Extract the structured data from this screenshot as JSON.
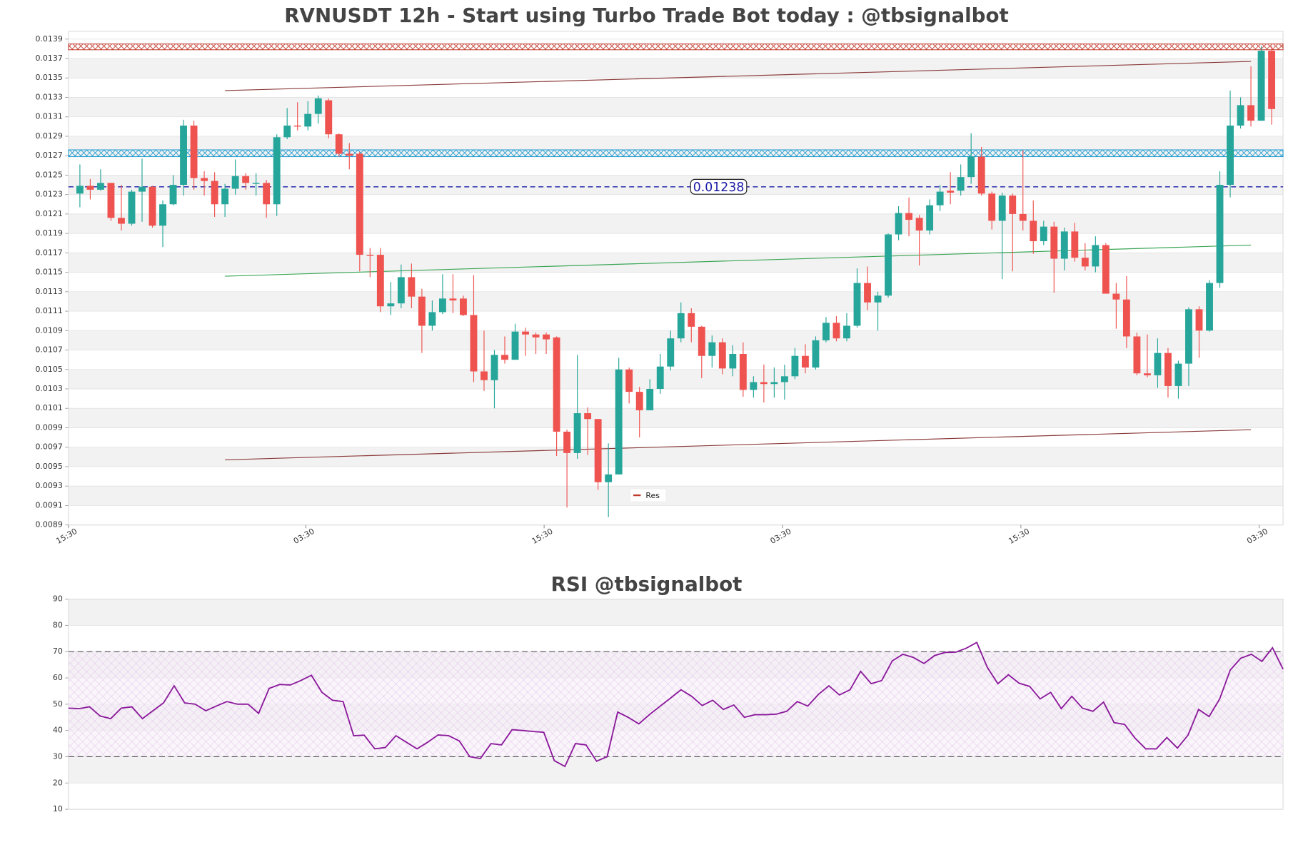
{
  "chart_data": [
    {
      "type": "candlestick",
      "title": "RVNUSDT 12h - Start using Turbo Trade Bot today : @tbsignalbot",
      "up_color": "#26a69a",
      "down_color": "#ef5350",
      "open": [
        0.01231,
        0.01239,
        0.01235,
        0.01242,
        0.01206,
        0.012,
        0.01233,
        0.01238,
        0.01198,
        0.0122,
        0.0124,
        0.01301,
        0.01247,
        0.01244,
        0.0122,
        0.01236,
        0.01249,
        0.01242,
        0.01242,
        0.0122,
        0.01289,
        0.01301,
        0.013,
        0.01313,
        0.01327,
        0.01292,
        0.01272,
        0.01272,
        0.01168,
        0.01168,
        0.01115,
        0.01118,
        0.01145,
        0.01125,
        0.01095,
        0.01109,
        0.01123,
        0.01123,
        0.01106,
        0.01048,
        0.01039,
        0.01065,
        0.0106,
        0.01089,
        0.01086,
        0.01086,
        0.01083,
        0.00986,
        0.00964,
        0.01005,
        0.00999,
        0.00934,
        0.00942,
        0.0105,
        0.01027,
        0.01008,
        0.0103,
        0.01053,
        0.01082,
        0.01108,
        0.01094,
        0.01064,
        0.01078,
        0.01051,
        0.01066,
        0.01029,
        0.01037,
        0.01035,
        0.01037,
        0.01043,
        0.01064,
        0.01052,
        0.0108,
        0.01098,
        0.01082,
        0.01095,
        0.01139,
        0.01119,
        0.01126,
        0.01189,
        0.01211,
        0.01206,
        0.01193,
        0.01219,
        0.01234,
        0.01234,
        0.01248,
        0.01269,
        0.01231,
        0.01203,
        0.01229,
        0.0121,
        0.01203,
        0.01182,
        0.01197,
        0.01164,
        0.01192,
        0.01165,
        0.01156,
        0.01178,
        0.01128,
        0.01122,
        0.01084,
        0.01046,
        0.01044,
        0.01067,
        0.01033,
        0.01056,
        0.01112,
        0.0109,
        0.01139,
        0.0124,
        0.01301,
        0.01322,
        0.01306,
        0.01378
      ],
      "high": [
        0.01261,
        0.01246,
        0.01256,
        0.01242,
        0.0124,
        0.01235,
        0.01267,
        0.01239,
        0.01224,
        0.0125,
        0.01307,
        0.01306,
        0.01254,
        0.01253,
        0.01241,
        0.01266,
        0.01252,
        0.01252,
        0.01245,
        0.01292,
        0.01319,
        0.01325,
        0.01326,
        0.01332,
        0.01329,
        0.01293,
        0.01283,
        0.01274,
        0.01175,
        0.01175,
        0.0114,
        0.01158,
        0.01159,
        0.01133,
        0.01121,
        0.01148,
        0.01148,
        0.01126,
        0.01147,
        0.0109,
        0.0107,
        0.01084,
        0.01097,
        0.01093,
        0.01088,
        0.01088,
        0.01084,
        0.00988,
        0.01065,
        0.01011,
        0.00999,
        0.00974,
        0.01062,
        0.01052,
        0.01032,
        0.0104,
        0.01066,
        0.0109,
        0.01119,
        0.01113,
        0.01095,
        0.01085,
        0.01082,
        0.01075,
        0.01078,
        0.01043,
        0.01055,
        0.01052,
        0.01055,
        0.01072,
        0.01076,
        0.01084,
        0.01104,
        0.01105,
        0.01108,
        0.01154,
        0.01156,
        0.0113,
        0.0119,
        0.01218,
        0.01227,
        0.01209,
        0.01225,
        0.0124,
        0.01253,
        0.01261,
        0.01293,
        0.01279,
        0.01233,
        0.01232,
        0.01231,
        0.01276,
        0.01224,
        0.01203,
        0.01202,
        0.01196,
        0.01201,
        0.0118,
        0.01187,
        0.0118,
        0.01139,
        0.01146,
        0.01088,
        0.01086,
        0.01082,
        0.01072,
        0.01059,
        0.01114,
        0.01115,
        0.01142,
        0.01254,
        0.01337,
        0.0133,
        0.01362,
        0.01383,
        0.01383
      ],
      "low": [
        0.01217,
        0.01225,
        0.01234,
        0.01203,
        0.01193,
        0.01198,
        0.01202,
        0.01196,
        0.01176,
        0.01219,
        0.01229,
        0.01235,
        0.01229,
        0.01207,
        0.01207,
        0.0123,
        0.01235,
        0.01229,
        0.01206,
        0.01208,
        0.01287,
        0.01296,
        0.01296,
        0.01303,
        0.01288,
        0.01269,
        0.01256,
        0.01151,
        0.01145,
        0.01109,
        0.01106,
        0.01113,
        0.01113,
        0.01067,
        0.0109,
        0.01107,
        0.01108,
        0.01105,
        0.01037,
        0.01028,
        0.0101,
        0.01056,
        0.0106,
        0.01064,
        0.01066,
        0.01066,
        0.00961,
        0.00908,
        0.00958,
        0.00962,
        0.00926,
        0.00898,
        0.00942,
        0.01015,
        0.0098,
        0.01008,
        0.01025,
        0.01049,
        0.01078,
        0.01078,
        0.01041,
        0.01052,
        0.01045,
        0.01043,
        0.01022,
        0.01021,
        0.01016,
        0.01021,
        0.01019,
        0.0104,
        0.01046,
        0.0105,
        0.01078,
        0.01079,
        0.01079,
        0.01093,
        0.01111,
        0.0109,
        0.01124,
        0.01183,
        0.01187,
        0.01157,
        0.01189,
        0.01213,
        0.0122,
        0.01229,
        0.01241,
        0.01229,
        0.01194,
        0.01143,
        0.01151,
        0.01193,
        0.01169,
        0.01178,
        0.01129,
        0.01152,
        0.01161,
        0.01152,
        0.0115,
        0.01128,
        0.01092,
        0.01072,
        0.01044,
        0.01042,
        0.01031,
        0.01021,
        0.0102,
        0.01033,
        0.01062,
        0.01089,
        0.01134,
        0.01227,
        0.01298,
        0.013,
        0.01306,
        0.01302
      ],
      "close": [
        0.01239,
        0.01235,
        0.01242,
        0.01206,
        0.012,
        0.01233,
        0.01238,
        0.01198,
        0.0122,
        0.0124,
        0.01301,
        0.01247,
        0.01244,
        0.0122,
        0.01236,
        0.01249,
        0.01242,
        0.01242,
        0.0122,
        0.01289,
        0.01301,
        0.013,
        0.01313,
        0.01329,
        0.01292,
        0.01272,
        0.0127,
        0.01168,
        0.01167,
        0.01115,
        0.01118,
        0.01145,
        0.01125,
        0.01095,
        0.01109,
        0.01123,
        0.01121,
        0.01106,
        0.01048,
        0.01039,
        0.01065,
        0.0106,
        0.01089,
        0.01086,
        0.01083,
        0.01081,
        0.00986,
        0.00964,
        0.01005,
        0.00999,
        0.00934,
        0.00942,
        0.0105,
        0.01027,
        0.01008,
        0.0103,
        0.01053,
        0.01082,
        0.01108,
        0.01094,
        0.01064,
        0.01078,
        0.01051,
        0.01066,
        0.01029,
        0.01037,
        0.01035,
        0.01037,
        0.01043,
        0.01064,
        0.01052,
        0.0108,
        0.01098,
        0.01082,
        0.01095,
        0.01139,
        0.01119,
        0.01126,
        0.01189,
        0.01211,
        0.01204,
        0.01193,
        0.01219,
        0.01233,
        0.01232,
        0.01248,
        0.01269,
        0.01231,
        0.01203,
        0.01229,
        0.0121,
        0.01203,
        0.01182,
        0.01197,
        0.01164,
        0.01192,
        0.01165,
        0.01156,
        0.01178,
        0.01128,
        0.01122,
        0.01084,
        0.01046,
        0.01044,
        0.01067,
        0.01033,
        0.01056,
        0.01112,
        0.0109,
        0.01139,
        0.0124,
        0.01301,
        0.01322,
        0.01306,
        0.01378,
        0.01318
      ],
      "xlim": [
        -1.1,
        116.1
      ],
      "xticks": [
        {
          "value": -1.1,
          "label": "15:30"
        },
        {
          "value": 21.8,
          "label": "03:30"
        },
        {
          "value": 44.8,
          "label": "15:30"
        },
        {
          "value": 67.8,
          "label": "03:30"
        },
        {
          "value": 90.8,
          "label": "15:30"
        },
        {
          "value": 113.8,
          "label": "03:30"
        }
      ],
      "ylim": [
        0.0089,
        0.01398
      ],
      "yticks": [
        0.0089,
        0.0091,
        0.0093,
        0.0095,
        0.0097,
        0.0099,
        0.0101,
        0.0103,
        0.0105,
        0.0107,
        0.0109,
        0.0111,
        0.0113,
        0.0115,
        0.0117,
        0.0119,
        0.0121,
        0.0123,
        0.0125,
        0.0127,
        0.0129,
        0.0131,
        0.0133,
        0.0135,
        0.0137,
        0.0139
      ],
      "zones": [
        {
          "name": "Res",
          "lo": 0.01379,
          "hi": 0.01385,
          "color": "#c0392b"
        },
        {
          "lo": 0.01269,
          "hi": 0.01276,
          "color": "#1f9bd1"
        }
      ],
      "price_line": {
        "value": 0.01238,
        "color": "#1a1aa6"
      },
      "lines": [
        {
          "x": [
            14.0,
            113.0
          ],
          "y": [
            0.01337,
            0.01367
          ],
          "color": "#8b3a3a"
        },
        {
          "x": [
            14.0,
            113.0
          ],
          "y": [
            0.01146,
            0.01178
          ],
          "color": "#3aa655"
        },
        {
          "x": [
            14.0,
            113.0
          ],
          "y": [
            0.00957,
            0.00988
          ],
          "color": "#8b3a3a"
        }
      ]
    },
    {
      "type": "line",
      "title": "RSI @tbsignalbot",
      "color": "#8b1a9b",
      "values": [
        48.5,
        48.3,
        49,
        45.5,
        44.5,
        48.5,
        49,
        44.5,
        47.5,
        50.5,
        57,
        50.5,
        50,
        47.5,
        49.3,
        51,
        50,
        50,
        46.5,
        56,
        57.5,
        57.3,
        59,
        61,
        54.5,
        51.5,
        51,
        38,
        38.2,
        33,
        33.5,
        38,
        35.5,
        33,
        35.5,
        38.3,
        38,
        36,
        30,
        29.3,
        35,
        34.5,
        40.3,
        40,
        39.6,
        39.3,
        28.5,
        26.3,
        35,
        34.5,
        28.3,
        30,
        47,
        45,
        42.5,
        46,
        49.2,
        52.3,
        55.5,
        53,
        49.5,
        51.5,
        48,
        49.7,
        45,
        46,
        46,
        46.2,
        47.3,
        51,
        49.3,
        53.7,
        57,
        53.5,
        55.5,
        62.5,
        57.8,
        59,
        66.5,
        69,
        67.8,
        65.5,
        68.5,
        69.7,
        69.8,
        71.3,
        73.5,
        64,
        57.8,
        61.2,
        58,
        56.8,
        52,
        54.5,
        48.3,
        53,
        48.5,
        47.3,
        50.8,
        43,
        42.3,
        37,
        33,
        33,
        37.3,
        33.3,
        38.2,
        48,
        45.3,
        52,
        63,
        67.5,
        69,
        66.3,
        71.5,
        63.3
      ],
      "ylim": [
        10,
        90
      ],
      "yticks": [
        10,
        20,
        30,
        40,
        50,
        60,
        70,
        80,
        90
      ],
      "hlines": [
        30,
        70
      ]
    }
  ]
}
